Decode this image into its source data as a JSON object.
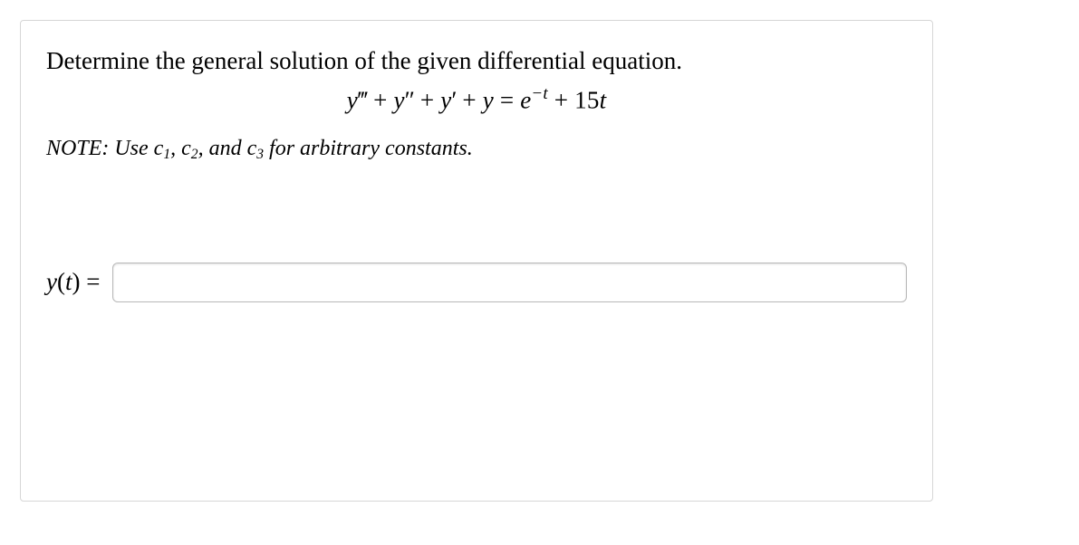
{
  "box": {
    "border_color": "#d6d6d6",
    "background": "#ffffff"
  },
  "prompt": {
    "text": "Determine the general solution of the given differential equation.",
    "fontsize": 27,
    "color": "#000000"
  },
  "equation": {
    "lhs_terms": [
      "y‴",
      "y″",
      "y′",
      "y"
    ],
    "rhs_terms": [
      "e^{-t}",
      "15t"
    ],
    "display": "y‴ + y″ + y′ + y = e^{−t} + 15t",
    "constant_coeff": 15,
    "exponent_text": "−t",
    "fontsize": 27
  },
  "note": {
    "prefix": "NOTE: Use ",
    "c1": "c",
    "c1_sub": "1",
    "sep1": ", ",
    "c2": "c",
    "c2_sub": "2",
    "sep2": ", and ",
    "c3": "c",
    "c3_sub": "3",
    "suffix": " for arbitrary constants.",
    "fontsize": 24
  },
  "answer": {
    "label_y": "y",
    "label_t": "t",
    "equals": " = ",
    "input_value": "",
    "placeholder": "",
    "fontsize": 27,
    "input_border_color": "#b8b8b8"
  }
}
